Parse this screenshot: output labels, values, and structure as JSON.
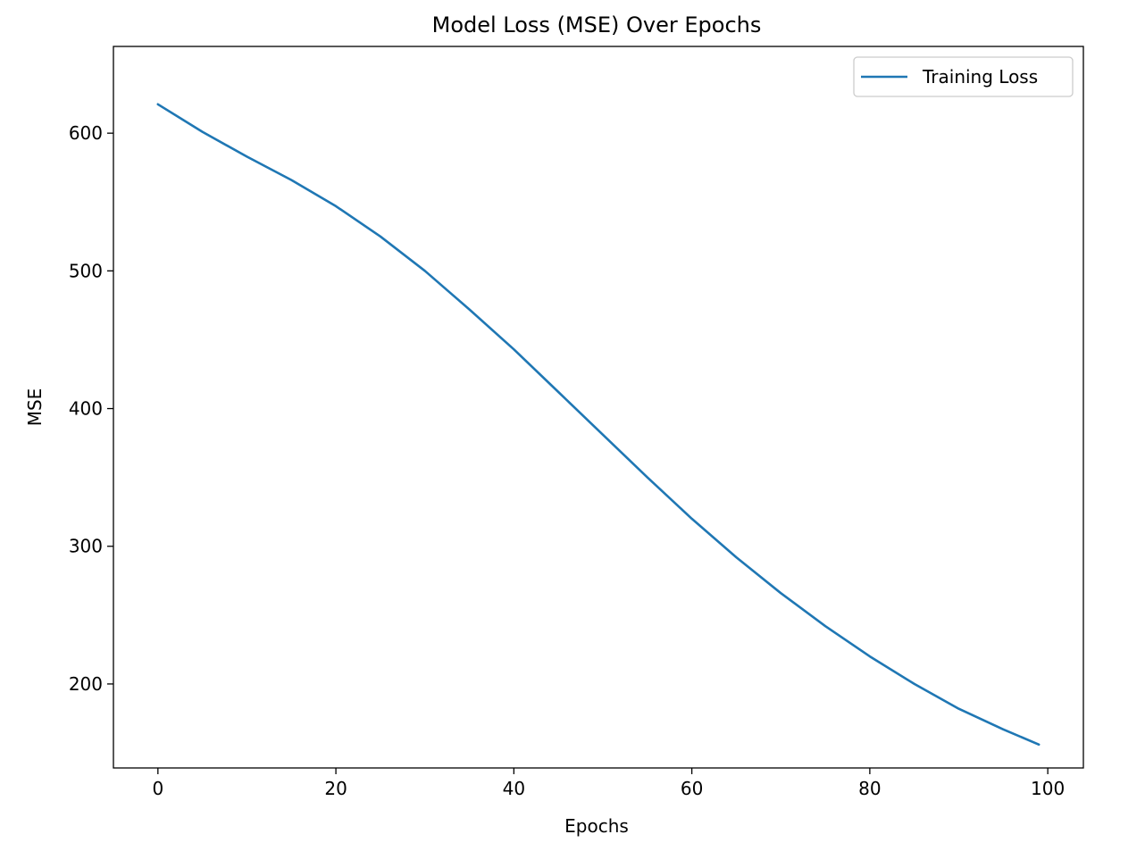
{
  "chart_data": {
    "type": "line",
    "title": "Model Loss (MSE) Over Epochs",
    "xlabel": "Epochs",
    "ylabel": "MSE",
    "xlim": [
      -5,
      104
    ],
    "ylim": [
      139,
      663
    ],
    "xticks": [
      0,
      20,
      40,
      60,
      80,
      100
    ],
    "yticks": [
      200,
      300,
      400,
      500,
      600
    ],
    "grid": false,
    "legend_position": "upper right",
    "series": [
      {
        "name": "Training Loss",
        "color": "#1f77b4",
        "x": [
          0,
          5,
          10,
          15,
          20,
          25,
          30,
          35,
          40,
          45,
          50,
          55,
          60,
          65,
          70,
          75,
          80,
          85,
          90,
          95,
          99
        ],
        "y": [
          621,
          601,
          583,
          566,
          547,
          525,
          500,
          472,
          443,
          412,
          381,
          350,
          320,
          292,
          266,
          242,
          220,
          200,
          182,
          167,
          156
        ]
      }
    ]
  }
}
